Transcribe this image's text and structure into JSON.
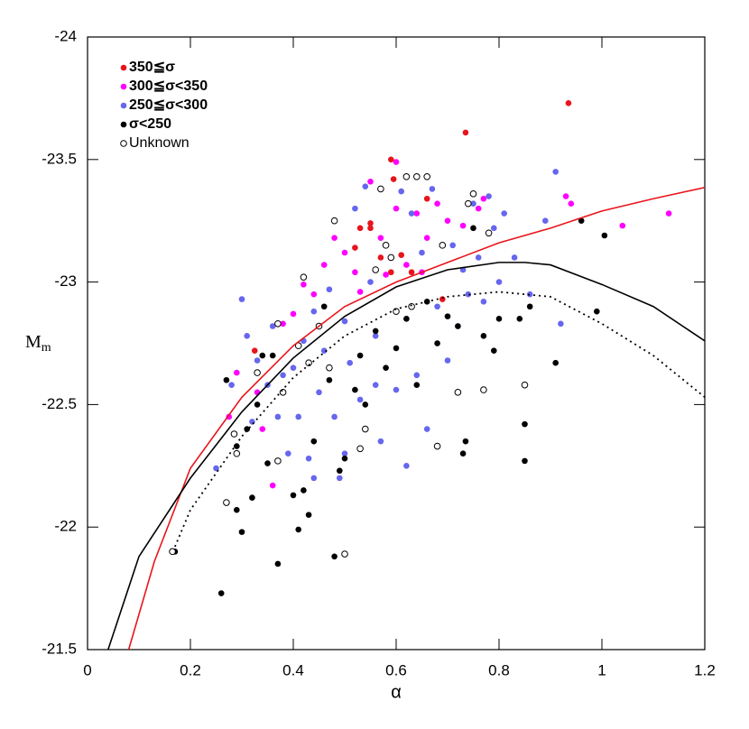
{
  "chart_data": {
    "type": "scatter",
    "xlabel": "α",
    "ylabel": "M",
    "ylabel_subscript": "m",
    "xlim": [
      0,
      1.2
    ],
    "ylim": [
      -21.5,
      -24
    ],
    "xticks": [
      0,
      0.2,
      0.4,
      0.6,
      0.8,
      1,
      1.2
    ],
    "yticks": [
      -24,
      -23.5,
      -23,
      -22.5,
      -22,
      -21.5
    ],
    "legend": "upper left",
    "series": [
      {
        "name": "350≦σ",
        "color": "#e8141c",
        "type": "scatter",
        "filled": true,
        "x": [
          0.325,
          0.52,
          0.53,
          0.55,
          0.57,
          0.59,
          0.59,
          0.595,
          0.61,
          0.63,
          0.66,
          0.69,
          0.735,
          0.935,
          0.55
        ],
        "values": [
          -22.72,
          -23.14,
          -23.22,
          -23.22,
          -23.1,
          -23.04,
          -23.5,
          -23.42,
          -23.11,
          -23.04,
          -23.34,
          -22.93,
          -23.61,
          -23.73,
          -23.24
        ]
      },
      {
        "name": "300≦σ<350",
        "color": "#ff00ff",
        "type": "scatter",
        "filled": true,
        "x": [
          0.275,
          0.29,
          0.33,
          0.36,
          0.38,
          0.4,
          0.44,
          0.46,
          0.48,
          0.5,
          0.52,
          0.55,
          0.57,
          0.58,
          0.6,
          0.62,
          0.64,
          0.65,
          0.68,
          0.7,
          0.73,
          0.76,
          0.77,
          0.93,
          0.94,
          1.04,
          1.13,
          0.42,
          0.53,
          0.66,
          0.34,
          0.6
        ],
        "values": [
          -22.45,
          -22.63,
          -22.55,
          -22.17,
          -22.83,
          -22.87,
          -22.95,
          -23.07,
          -23.18,
          -23.12,
          -23.04,
          -23.41,
          -23.18,
          -23.03,
          -23.49,
          -23.07,
          -23.28,
          -23.04,
          -23.32,
          -23.25,
          -23.23,
          -23.3,
          -23.34,
          -23.35,
          -23.32,
          -23.23,
          -23.28,
          -22.99,
          -22.96,
          -23.18,
          -22.4,
          -23.3
        ]
      },
      {
        "name": "250≦σ<300",
        "color": "#6666ee",
        "type": "scatter",
        "filled": true,
        "x": [
          0.25,
          0.28,
          0.3,
          0.31,
          0.32,
          0.33,
          0.35,
          0.36,
          0.38,
          0.39,
          0.4,
          0.41,
          0.42,
          0.43,
          0.44,
          0.45,
          0.46,
          0.47,
          0.48,
          0.49,
          0.5,
          0.51,
          0.52,
          0.53,
          0.54,
          0.55,
          0.56,
          0.57,
          0.58,
          0.6,
          0.61,
          0.62,
          0.63,
          0.64,
          0.65,
          0.66,
          0.67,
          0.68,
          0.7,
          0.71,
          0.72,
          0.73,
          0.74,
          0.75,
          0.76,
          0.77,
          0.78,
          0.79,
          0.8,
          0.81,
          0.83,
          0.86,
          0.89,
          0.91,
          0.92,
          0.56,
          0.44,
          0.37,
          0.62,
          0.5
        ],
        "values": [
          -22.24,
          -22.58,
          -22.93,
          -22.78,
          -22.43,
          -22.68,
          -22.58,
          -22.82,
          -22.62,
          -22.3,
          -22.65,
          -22.45,
          -22.76,
          -22.28,
          -22.88,
          -22.55,
          -22.72,
          -22.97,
          -22.45,
          -22.2,
          -22.84,
          -22.67,
          -23.3,
          -22.52,
          -23.39,
          -23.0,
          -22.78,
          -22.35,
          -23.15,
          -22.56,
          -23.37,
          -22.85,
          -23.28,
          -22.62,
          -23.12,
          -22.4,
          -23.38,
          -22.9,
          -22.68,
          -23.15,
          -22.82,
          -23.05,
          -22.95,
          -23.32,
          -23.1,
          -22.92,
          -23.35,
          -23.22,
          -23.0,
          -23.28,
          -23.1,
          -22.95,
          -23.25,
          -23.45,
          -22.83,
          -22.58,
          -22.2,
          -22.45,
          -22.25,
          -22.3
        ]
      },
      {
        "name": "σ<250",
        "color": "#000000",
        "type": "scatter",
        "filled": true,
        "x": [
          0.17,
          0.26,
          0.27,
          0.29,
          0.29,
          0.3,
          0.31,
          0.32,
          0.33,
          0.34,
          0.35,
          0.36,
          0.37,
          0.4,
          0.41,
          0.42,
          0.43,
          0.44,
          0.46,
          0.47,
          0.48,
          0.49,
          0.5,
          0.52,
          0.53,
          0.54,
          0.56,
          0.58,
          0.6,
          0.62,
          0.64,
          0.66,
          0.68,
          0.7,
          0.72,
          0.73,
          0.735,
          0.75,
          0.77,
          0.79,
          0.8,
          0.85,
          0.85,
          0.84,
          0.91,
          0.96,
          0.99,
          1.005,
          0.86
        ],
        "values": [
          -21.9,
          -21.73,
          -22.6,
          -22.07,
          -22.33,
          -21.98,
          -22.4,
          -22.12,
          -22.5,
          -22.7,
          -22.26,
          -22.7,
          -21.85,
          -22.13,
          -21.99,
          -22.15,
          -22.05,
          -22.35,
          -22.9,
          -22.6,
          -21.88,
          -22.23,
          -22.28,
          -22.56,
          -22.7,
          -22.5,
          -22.8,
          -22.65,
          -22.73,
          -22.85,
          -22.58,
          -22.92,
          -22.75,
          -22.86,
          -22.82,
          -22.3,
          -22.35,
          -23.22,
          -22.78,
          -22.72,
          -22.85,
          -22.42,
          -22.27,
          -22.85,
          -22.67,
          -23.25,
          -22.88,
          -23.19,
          -22.9
        ]
      },
      {
        "name": "Unknown",
        "color": "#000000",
        "type": "scatter",
        "filled": false,
        "x": [
          0.165,
          0.27,
          0.285,
          0.29,
          0.33,
          0.37,
          0.38,
          0.37,
          0.41,
          0.43,
          0.45,
          0.47,
          0.48,
          0.5,
          0.53,
          0.54,
          0.56,
          0.57,
          0.58,
          0.6,
          0.62,
          0.63,
          0.64,
          0.66,
          0.68,
          0.69,
          0.72,
          0.74,
          0.75,
          0.77,
          0.78,
          0.85,
          0.59,
          0.42
        ],
        "values": [
          -21.9,
          -22.1,
          -22.38,
          -22.3,
          -22.63,
          -22.27,
          -22.55,
          -22.83,
          -22.74,
          -22.67,
          -22.82,
          -22.65,
          -23.25,
          -21.89,
          -22.32,
          -22.4,
          -23.05,
          -23.38,
          -23.15,
          -22.88,
          -23.43,
          -22.9,
          -23.43,
          -23.43,
          -22.33,
          -23.15,
          -22.55,
          -23.32,
          -23.36,
          -22.56,
          -23.2,
          -22.58,
          -23.1,
          -23.02
        ]
      },
      {
        "color": "#e8141c",
        "type": "line",
        "dash": "solid",
        "x": [
          0.08,
          0.13,
          0.2,
          0.3,
          0.4,
          0.5,
          0.6,
          0.7,
          0.8,
          0.9,
          1.0,
          1.1,
          1.2
        ],
        "values": [
          -21.5,
          -21.86,
          -22.24,
          -22.53,
          -22.74,
          -22.9,
          -23.0,
          -23.08,
          -23.16,
          -23.22,
          -23.29,
          -23.34,
          -23.386
        ]
      },
      {
        "color": "#000000",
        "type": "line",
        "dash": "solid",
        "x": [
          0.04,
          0.1,
          0.2,
          0.3,
          0.4,
          0.5,
          0.6,
          0.7,
          0.8,
          0.85,
          0.9,
          1.0,
          1.1,
          1.2
        ],
        "values": [
          -21.5,
          -21.88,
          -22.2,
          -22.47,
          -22.69,
          -22.86,
          -22.98,
          -23.05,
          -23.08,
          -23.08,
          -23.07,
          -22.99,
          -22.9,
          -22.76
        ]
      },
      {
        "color": "#000000",
        "type": "line",
        "dash": "dotted",
        "x": [
          0.17,
          0.2,
          0.3,
          0.4,
          0.5,
          0.6,
          0.7,
          0.8,
          0.9,
          1.0,
          1.1,
          1.2
        ],
        "values": [
          -21.92,
          -22.07,
          -22.37,
          -22.61,
          -22.78,
          -22.89,
          -22.94,
          -22.96,
          -22.94,
          -22.83,
          -22.7,
          -22.53
        ]
      }
    ]
  }
}
